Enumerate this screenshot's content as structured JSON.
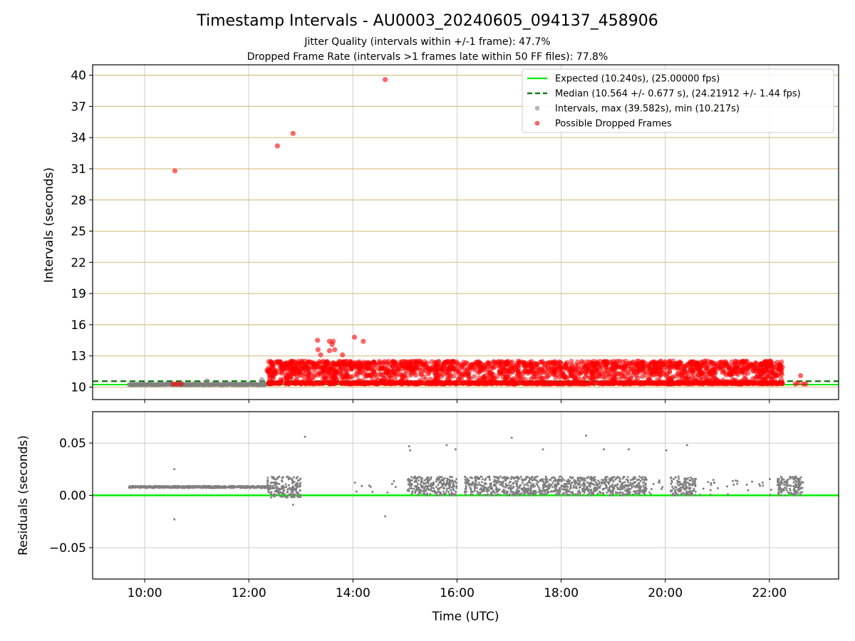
{
  "title": "Timestamp Intervals - AU0003_20240605_094137_458906",
  "subtitle_1": "Jitter Quality (intervals within +/-1 frame): 47.7%",
  "subtitle_2": "Dropped Frame Rate (intervals >1 frames late within 50 FF files): 77.8%",
  "colors": {
    "expected": "#00ee00",
    "median": "#007700",
    "intervals": "#808080",
    "dropped": "#ff0000",
    "hgrid_top": "#d6c48a",
    "grid": "#cccccc",
    "residual_line": "#00ee00"
  },
  "chart_data": [
    {
      "type": "scatter",
      "name": "intervals-panel",
      "ylabel": "Intervals (seconds)",
      "xlabel": "",
      "xlim_hours": [
        9.0,
        23.33
      ],
      "ylim": [
        8.8,
        41.0
      ],
      "yticks": [
        10,
        13,
        16,
        19,
        22,
        25,
        28,
        31,
        34,
        37,
        40
      ],
      "ytick_labels": [
        "10",
        "13",
        "16",
        "19",
        "22",
        "25",
        "28",
        "31",
        "34",
        "37",
        "40"
      ],
      "grid": true,
      "legend_position": "top-right",
      "legend": [
        "Expected (10.240s), (25.00000 fps)",
        "Median (10.564 +/- 0.677 s), (24.21912 +/- 1.44 fps)",
        "Intervals, max (39.582s), min (10.217s)",
        "Possible Dropped Frames"
      ],
      "expected_value": 10.24,
      "median_value": 10.564,
      "normal_band": {
        "x_start": 9.7,
        "x_end": 12.35,
        "y": 10.25
      },
      "outliers": [
        {
          "x": 10.58,
          "y": 30.8
        },
        {
          "x": 12.55,
          "y": 33.2
        },
        {
          "x": 12.85,
          "y": 34.4
        },
        {
          "x": 14.62,
          "y": 39.58
        },
        {
          "x": 13.32,
          "y": 14.5
        },
        {
          "x": 13.62,
          "y": 14.4
        },
        {
          "x": 13.55,
          "y": 14.4
        },
        {
          "x": 13.6,
          "y": 14.1
        },
        {
          "x": 13.55,
          "y": 13.5
        },
        {
          "x": 13.65,
          "y": 13.6
        },
        {
          "x": 13.33,
          "y": 13.6
        },
        {
          "x": 13.38,
          "y": 13.1
        },
        {
          "x": 13.8,
          "y": 13.1
        },
        {
          "x": 14.03,
          "y": 14.8
        },
        {
          "x": 14.2,
          "y": 14.4
        }
      ],
      "dense_band": {
        "x_start": 12.35,
        "x_end": 22.25,
        "y_min": 10.3,
        "y_max": 12.5
      },
      "tail_points": [
        {
          "x": 22.5,
          "y": 10.3
        },
        {
          "x": 22.55,
          "y": 10.4
        },
        {
          "x": 22.6,
          "y": 11.1
        },
        {
          "x": 22.65,
          "y": 10.3
        },
        {
          "x": 22.7,
          "y": 10.3
        },
        {
          "x": 10.55,
          "y": 10.3
        },
        {
          "x": 10.62,
          "y": 10.3
        },
        {
          "x": 10.7,
          "y": 10.3
        },
        {
          "x": 11.2,
          "y": 10.6
        },
        {
          "x": 12.25,
          "y": 10.7
        }
      ]
    },
    {
      "type": "scatter",
      "name": "residuals-panel",
      "ylabel": "Residuals (seconds)",
      "xlabel": "Time (UTC)",
      "xlim_hours": [
        9.0,
        23.33
      ],
      "ylim": [
        -0.08,
        0.08
      ],
      "yticks": [
        0.05,
        0.0,
        -0.05
      ],
      "ytick_labels": [
        "0.05",
        "0.00",
        "−0.05"
      ],
      "xticks": [
        10,
        12,
        14,
        16,
        18,
        20,
        22
      ],
      "xtick_labels": [
        "10:00",
        "12:00",
        "14:00",
        "16:00",
        "18:00",
        "20:00",
        "22:00"
      ],
      "grid": true,
      "zero_line": 0.0,
      "early_band": {
        "x_start": 9.7,
        "x_end": 12.4,
        "y": 0.008
      },
      "outliers": [
        {
          "x": 10.57,
          "y": 0.025
        },
        {
          "x": 10.57,
          "y": -0.023
        },
        {
          "x": 12.85,
          "y": -0.009
        },
        {
          "x": 13.08,
          "y": 0.056
        },
        {
          "x": 14.62,
          "y": -0.02
        },
        {
          "x": 15.08,
          "y": 0.047
        },
        {
          "x": 15.1,
          "y": 0.043
        },
        {
          "x": 15.8,
          "y": 0.048
        },
        {
          "x": 15.97,
          "y": 0.044
        },
        {
          "x": 17.05,
          "y": 0.055
        },
        {
          "x": 17.65,
          "y": 0.044
        },
        {
          "x": 18.48,
          "y": 0.057
        },
        {
          "x": 18.82,
          "y": 0.044
        },
        {
          "x": 19.3,
          "y": 0.044
        },
        {
          "x": 20.02,
          "y": 0.043
        },
        {
          "x": 20.42,
          "y": 0.048
        }
      ],
      "clusters": [
        {
          "x_start": 12.35,
          "x_end": 13.0,
          "y_min": -0.002,
          "y_max": 0.018
        },
        {
          "x_start": 15.05,
          "x_end": 15.3,
          "y_min": 0.0,
          "y_max": 0.018
        },
        {
          "x_start": 15.3,
          "x_end": 16.0,
          "y_min": 0.0,
          "y_max": 0.018
        },
        {
          "x_start": 16.15,
          "x_end": 18.8,
          "y_min": 0.0,
          "y_max": 0.018
        },
        {
          "x_start": 18.8,
          "x_end": 19.65,
          "y_min": 0.0,
          "y_max": 0.018
        },
        {
          "x_start": 20.1,
          "x_end": 20.6,
          "y_min": 0.0,
          "y_max": 0.018
        },
        {
          "x_start": 22.15,
          "x_end": 22.65,
          "y_min": 0.0,
          "y_max": 0.018
        }
      ],
      "sparse_ranges": [
        {
          "x_start": 14.0,
          "x_end": 15.0,
          "count": 10
        },
        {
          "x_start": 19.6,
          "x_end": 20.05,
          "count": 12
        },
        {
          "x_start": 20.65,
          "x_end": 22.1,
          "count": 28
        }
      ]
    }
  ]
}
